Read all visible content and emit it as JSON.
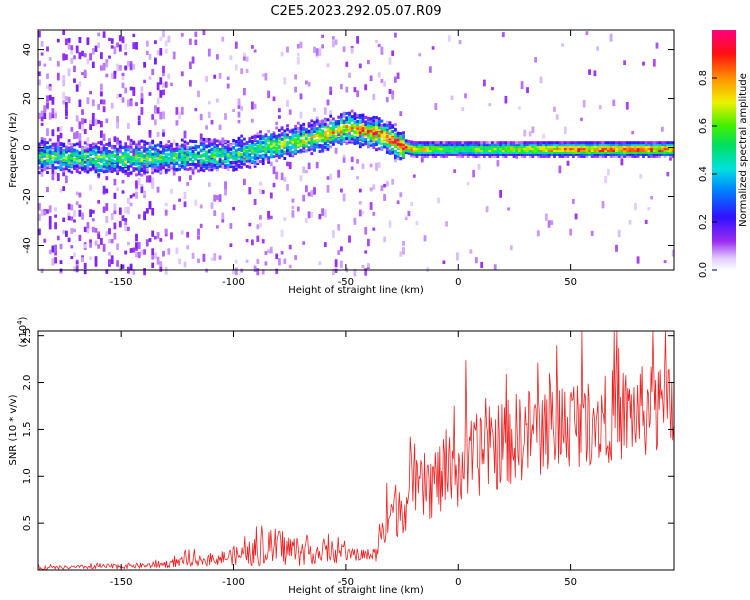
{
  "title": "C2E5.2023.292.05.07.R09",
  "colors": {
    "snr_line": "#ee2222",
    "axis": "#000000",
    "background": "#ffffff"
  },
  "chart_data": [
    {
      "type": "heatmap",
      "title": "C2E5.2023.292.05.07.R09",
      "xlabel": "Height of straight line (km)",
      "ylabel": "Frequency (Hz)",
      "xlim": [
        -187,
        96
      ],
      "ylim": [
        -50,
        48
      ],
      "x_ticks": [
        -150,
        -100,
        -50,
        0,
        50
      ],
      "x_tick_labels": [
        "-150",
        "-100",
        "-50",
        "0",
        "50"
      ],
      "y_ticks": [
        -40,
        -20,
        0,
        20,
        40
      ],
      "y_tick_labels": [
        "-40",
        "-20",
        "0",
        "20",
        "40"
      ],
      "colorbar": {
        "label": "Normalized spectral amplitude",
        "range": [
          0,
          1
        ],
        "ticks": [
          0.0,
          0.2,
          0.4,
          0.6,
          0.8
        ],
        "tick_labels": [
          "0.0",
          "0.2",
          "0.4",
          "0.6",
          "0.8"
        ],
        "colormap": "rainbow (white-purple-blue-cyan-green-yellow-orange-red-magenta)"
      },
      "ridge": {
        "description": "dominant spectral band (center frequency vs height)",
        "x": [
          -187,
          -150,
          -120,
          -100,
          -80,
          -60,
          -50,
          -40,
          -35,
          -30,
          -25,
          -20,
          0,
          50,
          96
        ],
        "center_hz": [
          -3,
          -4,
          -3,
          -2,
          2,
          6,
          9,
          7,
          6,
          4,
          1,
          0,
          0,
          0,
          0
        ],
        "peak_amplitude": [
          0.5,
          0.55,
          0.5,
          0.5,
          0.6,
          0.7,
          0.75,
          0.8,
          0.8,
          0.9,
          0.9,
          0.8,
          0.6,
          0.9,
          0.9
        ]
      },
      "grid": false
    },
    {
      "type": "line",
      "xlabel": "Height of straight line (km)",
      "ylabel": "SNR (10 * v/v)",
      "y_scale_note": "(x10^4)",
      "xlim": [
        -187,
        96
      ],
      "ylim": [
        0,
        2.55
      ],
      "x_ticks": [
        -150,
        -100,
        -50,
        0,
        50
      ],
      "x_tick_labels": [
        "-150",
        "-100",
        "-50",
        "0",
        "50"
      ],
      "y_ticks": [
        0.5,
        1.0,
        1.5,
        2.0,
        2.5
      ],
      "y_tick_labels": [
        "0.5",
        "1.0",
        "1.5",
        "2.0",
        "2.5"
      ],
      "series": [
        {
          "color": "#ee2222",
          "x": [
            -187,
            -170,
            -150,
            -135,
            -125,
            -115,
            -105,
            -100,
            -92,
            -85,
            -80,
            -75,
            -70,
            -65,
            -60,
            -55,
            -50,
            -45,
            -40,
            -36,
            -34,
            -30,
            -25,
            -20,
            -15,
            -10,
            -5,
            0,
            5,
            10,
            20,
            30,
            40,
            50,
            60,
            70,
            80,
            90,
            96
          ],
          "base": [
            0.02,
            0.03,
            0.04,
            0.05,
            0.08,
            0.1,
            0.13,
            0.15,
            0.18,
            0.22,
            0.25,
            0.22,
            0.2,
            0.2,
            0.18,
            0.17,
            0.17,
            0.16,
            0.16,
            0.17,
            0.55,
            0.6,
            0.7,
            0.8,
            0.88,
            0.95,
            1.0,
            1.08,
            1.15,
            1.25,
            1.35,
            1.45,
            1.52,
            1.58,
            1.62,
            1.65,
            1.68,
            1.7,
            1.7
          ],
          "noise": [
            0.02,
            0.02,
            0.03,
            0.03,
            0.05,
            0.06,
            0.08,
            0.1,
            0.14,
            0.18,
            0.22,
            0.18,
            0.16,
            0.14,
            0.12,
            0.1,
            0.08,
            0.07,
            0.07,
            0.08,
            0.28,
            0.3,
            0.32,
            0.35,
            0.38,
            0.4,
            0.42,
            0.44,
            0.45,
            0.46,
            0.48,
            0.5,
            0.5,
            0.5,
            0.5,
            0.5,
            0.5,
            0.52,
            0.52
          ]
        }
      ],
      "grid": false
    }
  ]
}
